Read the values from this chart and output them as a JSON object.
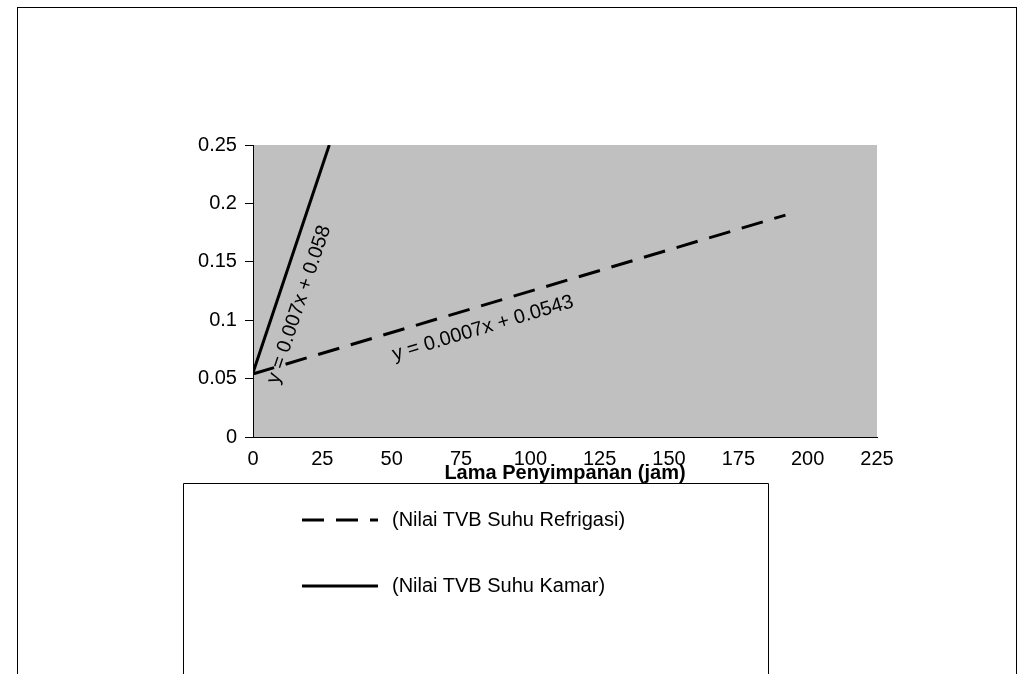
{
  "chart_data": {
    "type": "line",
    "xlabel": "Lama Penyimpanan (jam)",
    "xlim": [
      0,
      225
    ],
    "xticks": [
      0,
      25,
      50,
      75,
      100,
      125,
      150,
      175,
      200,
      225
    ],
    "ylim": [
      0,
      0.25
    ],
    "yticks": [
      0,
      0.05,
      0.1,
      0.15,
      0.2,
      0.25
    ],
    "grid": false,
    "legend": "bottom",
    "marker": "none",
    "series": [
      {
        "name": "(Nilai TVB Suhu Refrigasi)",
        "color": "#000000",
        "line_style": "dashed",
        "x": [
          0,
          192
        ],
        "values": [
          0.054,
          0.19
        ]
      },
      {
        "name": "(Nilai TVB Suhu Kamar)",
        "color": "#000000",
        "line_style": "solid",
        "x": [
          0,
          27.5
        ],
        "values": [
          0.055,
          0.25
        ]
      }
    ],
    "annotations": [
      "y = 0.0007x + 0.0543",
      "y = 0.007x + 0.058"
    ]
  }
}
